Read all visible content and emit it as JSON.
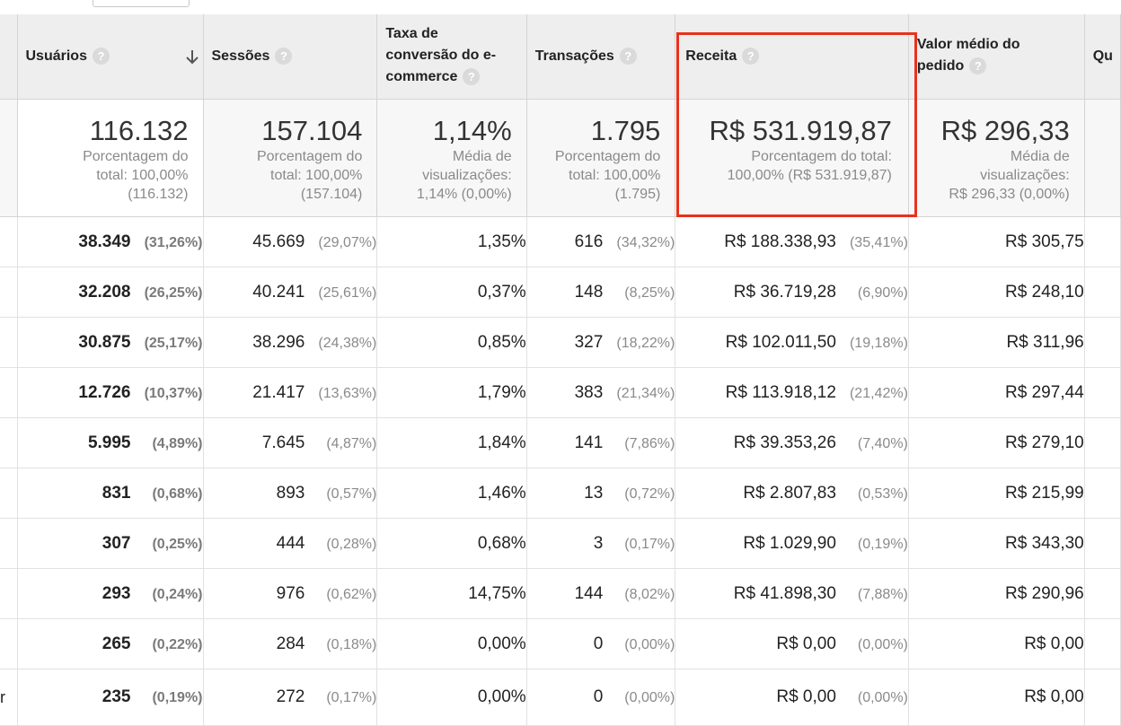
{
  "columns": {
    "users": "Usuários",
    "sessions": "Sessões",
    "conversion": [
      "Taxa de",
      "conversão do e-",
      "commerce"
    ],
    "transactions": "Transações",
    "revenue": "Receita",
    "aov": [
      "Valor médio do",
      "pedido"
    ],
    "qty": "Qu",
    "help": "?"
  },
  "totals": {
    "users": {
      "value": "116.132",
      "sub": [
        "Porcentagem do",
        "total: 100,00%",
        "(116.132)"
      ]
    },
    "sessions": {
      "value": "157.104",
      "sub": [
        "Porcentagem do",
        "total: 100,00%",
        "(157.104)"
      ]
    },
    "conversion": {
      "value": "1,14%",
      "sub": [
        "Média de",
        "visualizações:",
        "1,14% (0,00%)"
      ]
    },
    "transactions": {
      "value": "1.795",
      "sub": [
        "Porcentagem do",
        "total: 100,00%",
        "(1.795)"
      ]
    },
    "revenue": {
      "value": "R$ 531.919,87",
      "sub": [
        "Porcentagem do total:",
        "100,00% (R$ 531.919,87)"
      ]
    },
    "aov": {
      "value": "R$ 296,33",
      "sub": [
        "Média de",
        "visualizações:",
        "R$ 296,33 (0,00%)"
      ]
    }
  },
  "rows": [
    {
      "lead": "",
      "users": "38.349",
      "users_pct": "(31,26%)",
      "sessions": "45.669",
      "sessions_pct": "(29,07%)",
      "conversion": "1,35%",
      "transactions": "616",
      "transactions_pct": "(34,32%)",
      "revenue": "R$ 188.338,93",
      "revenue_pct": "(35,41%)",
      "aov": "R$ 305,75"
    },
    {
      "lead": "",
      "users": "32.208",
      "users_pct": "(26,25%)",
      "sessions": "40.241",
      "sessions_pct": "(25,61%)",
      "conversion": "0,37%",
      "transactions": "148",
      "transactions_pct": "(8,25%)",
      "revenue": "R$ 36.719,28",
      "revenue_pct": "(6,90%)",
      "aov": "R$ 248,10"
    },
    {
      "lead": "",
      "users": "30.875",
      "users_pct": "(25,17%)",
      "sessions": "38.296",
      "sessions_pct": "(24,38%)",
      "conversion": "0,85%",
      "transactions": "327",
      "transactions_pct": "(18,22%)",
      "revenue": "R$ 102.011,50",
      "revenue_pct": "(19,18%)",
      "aov": "R$ 311,96"
    },
    {
      "lead": "",
      "users": "12.726",
      "users_pct": "(10,37%)",
      "sessions": "21.417",
      "sessions_pct": "(13,63%)",
      "conversion": "1,79%",
      "transactions": "383",
      "transactions_pct": "(21,34%)",
      "revenue": "R$ 113.918,12",
      "revenue_pct": "(21,42%)",
      "aov": "R$ 297,44"
    },
    {
      "lead": "",
      "users": "5.995",
      "users_pct": "(4,89%)",
      "sessions": "7.645",
      "sessions_pct": "(4,87%)",
      "conversion": "1,84%",
      "transactions": "141",
      "transactions_pct": "(7,86%)",
      "revenue": "R$ 39.353,26",
      "revenue_pct": "(7,40%)",
      "aov": "R$ 279,10"
    },
    {
      "lead": "",
      "users": "831",
      "users_pct": "(0,68%)",
      "sessions": "893",
      "sessions_pct": "(0,57%)",
      "conversion": "1,46%",
      "transactions": "13",
      "transactions_pct": "(0,72%)",
      "revenue": "R$ 2.807,83",
      "revenue_pct": "(0,53%)",
      "aov": "R$ 215,99"
    },
    {
      "lead": "",
      "users": "307",
      "users_pct": "(0,25%)",
      "sessions": "444",
      "sessions_pct": "(0,28%)",
      "conversion": "0,68%",
      "transactions": "3",
      "transactions_pct": "(0,17%)",
      "revenue": "R$ 1.029,90",
      "revenue_pct": "(0,19%)",
      "aov": "R$ 343,30"
    },
    {
      "lead": "",
      "users": "293",
      "users_pct": "(0,24%)",
      "sessions": "976",
      "sessions_pct": "(0,62%)",
      "conversion": "14,75%",
      "transactions": "144",
      "transactions_pct": "(8,02%)",
      "revenue": "R$ 41.898,30",
      "revenue_pct": "(7,88%)",
      "aov": "R$ 290,96"
    },
    {
      "lead": "",
      "users": "265",
      "users_pct": "(0,22%)",
      "sessions": "284",
      "sessions_pct": "(0,18%)",
      "conversion": "0,00%",
      "transactions": "0",
      "transactions_pct": "(0,00%)",
      "revenue": "R$ 0,00",
      "revenue_pct": "(0,00%)",
      "aov": "R$ 0,00"
    },
    {
      "lead": "r",
      "users": "235",
      "users_pct": "(0,19%)",
      "sessions": "272",
      "sessions_pct": "(0,17%)",
      "conversion": "0,00%",
      "transactions": "0",
      "transactions_pct": "(0,00%)",
      "revenue": "R$ 0,00",
      "revenue_pct": "(0,00%)",
      "aov": "R$ 0,00"
    }
  ],
  "colors": {
    "highlight": "#e8321d",
    "header_bg": "#eeeeee",
    "totals_bg": "#f7f7f7"
  }
}
